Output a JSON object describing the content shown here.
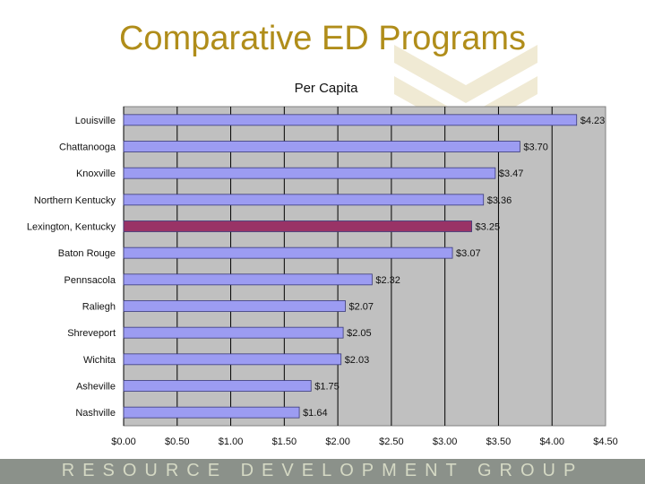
{
  "slide": {
    "title": "Comparative ED Programs",
    "footer": "RESOURCE DEVELOPMENT GROUP"
  },
  "colors": {
    "title": "#b08d1a",
    "bar": "#9c9cf2",
    "highlight_bar": "#993366",
    "plot_background": "#c0c0c0",
    "footer": "#8b918a"
  },
  "chart_data": {
    "type": "bar",
    "orientation": "horizontal",
    "title": "Per Capita",
    "categories": [
      "Louisville",
      "Chattanooga",
      "Knoxville",
      "Northern Kentucky",
      "Lexington, Kentucky",
      "Baton Rouge",
      "Pennsacola",
      "Raliegh",
      "Shreveport",
      "Wichita",
      "Asheville",
      "Nashville"
    ],
    "values": [
      4.23,
      3.7,
      3.47,
      3.36,
      3.25,
      3.07,
      2.32,
      2.07,
      2.05,
      2.03,
      1.75,
      1.64
    ],
    "value_labels": [
      "$4.23",
      "$3.70",
      "$3.47",
      "$3.36",
      "$3.25",
      "$3.07",
      "$2.32",
      "$2.07",
      "$2.05",
      "$2.03",
      "$1.75",
      "$1.64"
    ],
    "highlight": "Lexington, Kentucky",
    "xlim": [
      0,
      4.5
    ],
    "xticks": [
      "$0.00",
      "$0.50",
      "$1.00",
      "$1.50",
      "$2.00",
      "$2.50",
      "$3.00",
      "$3.50",
      "$4.00",
      "$4.50"
    ],
    "grid": true,
    "legend": "none"
  }
}
